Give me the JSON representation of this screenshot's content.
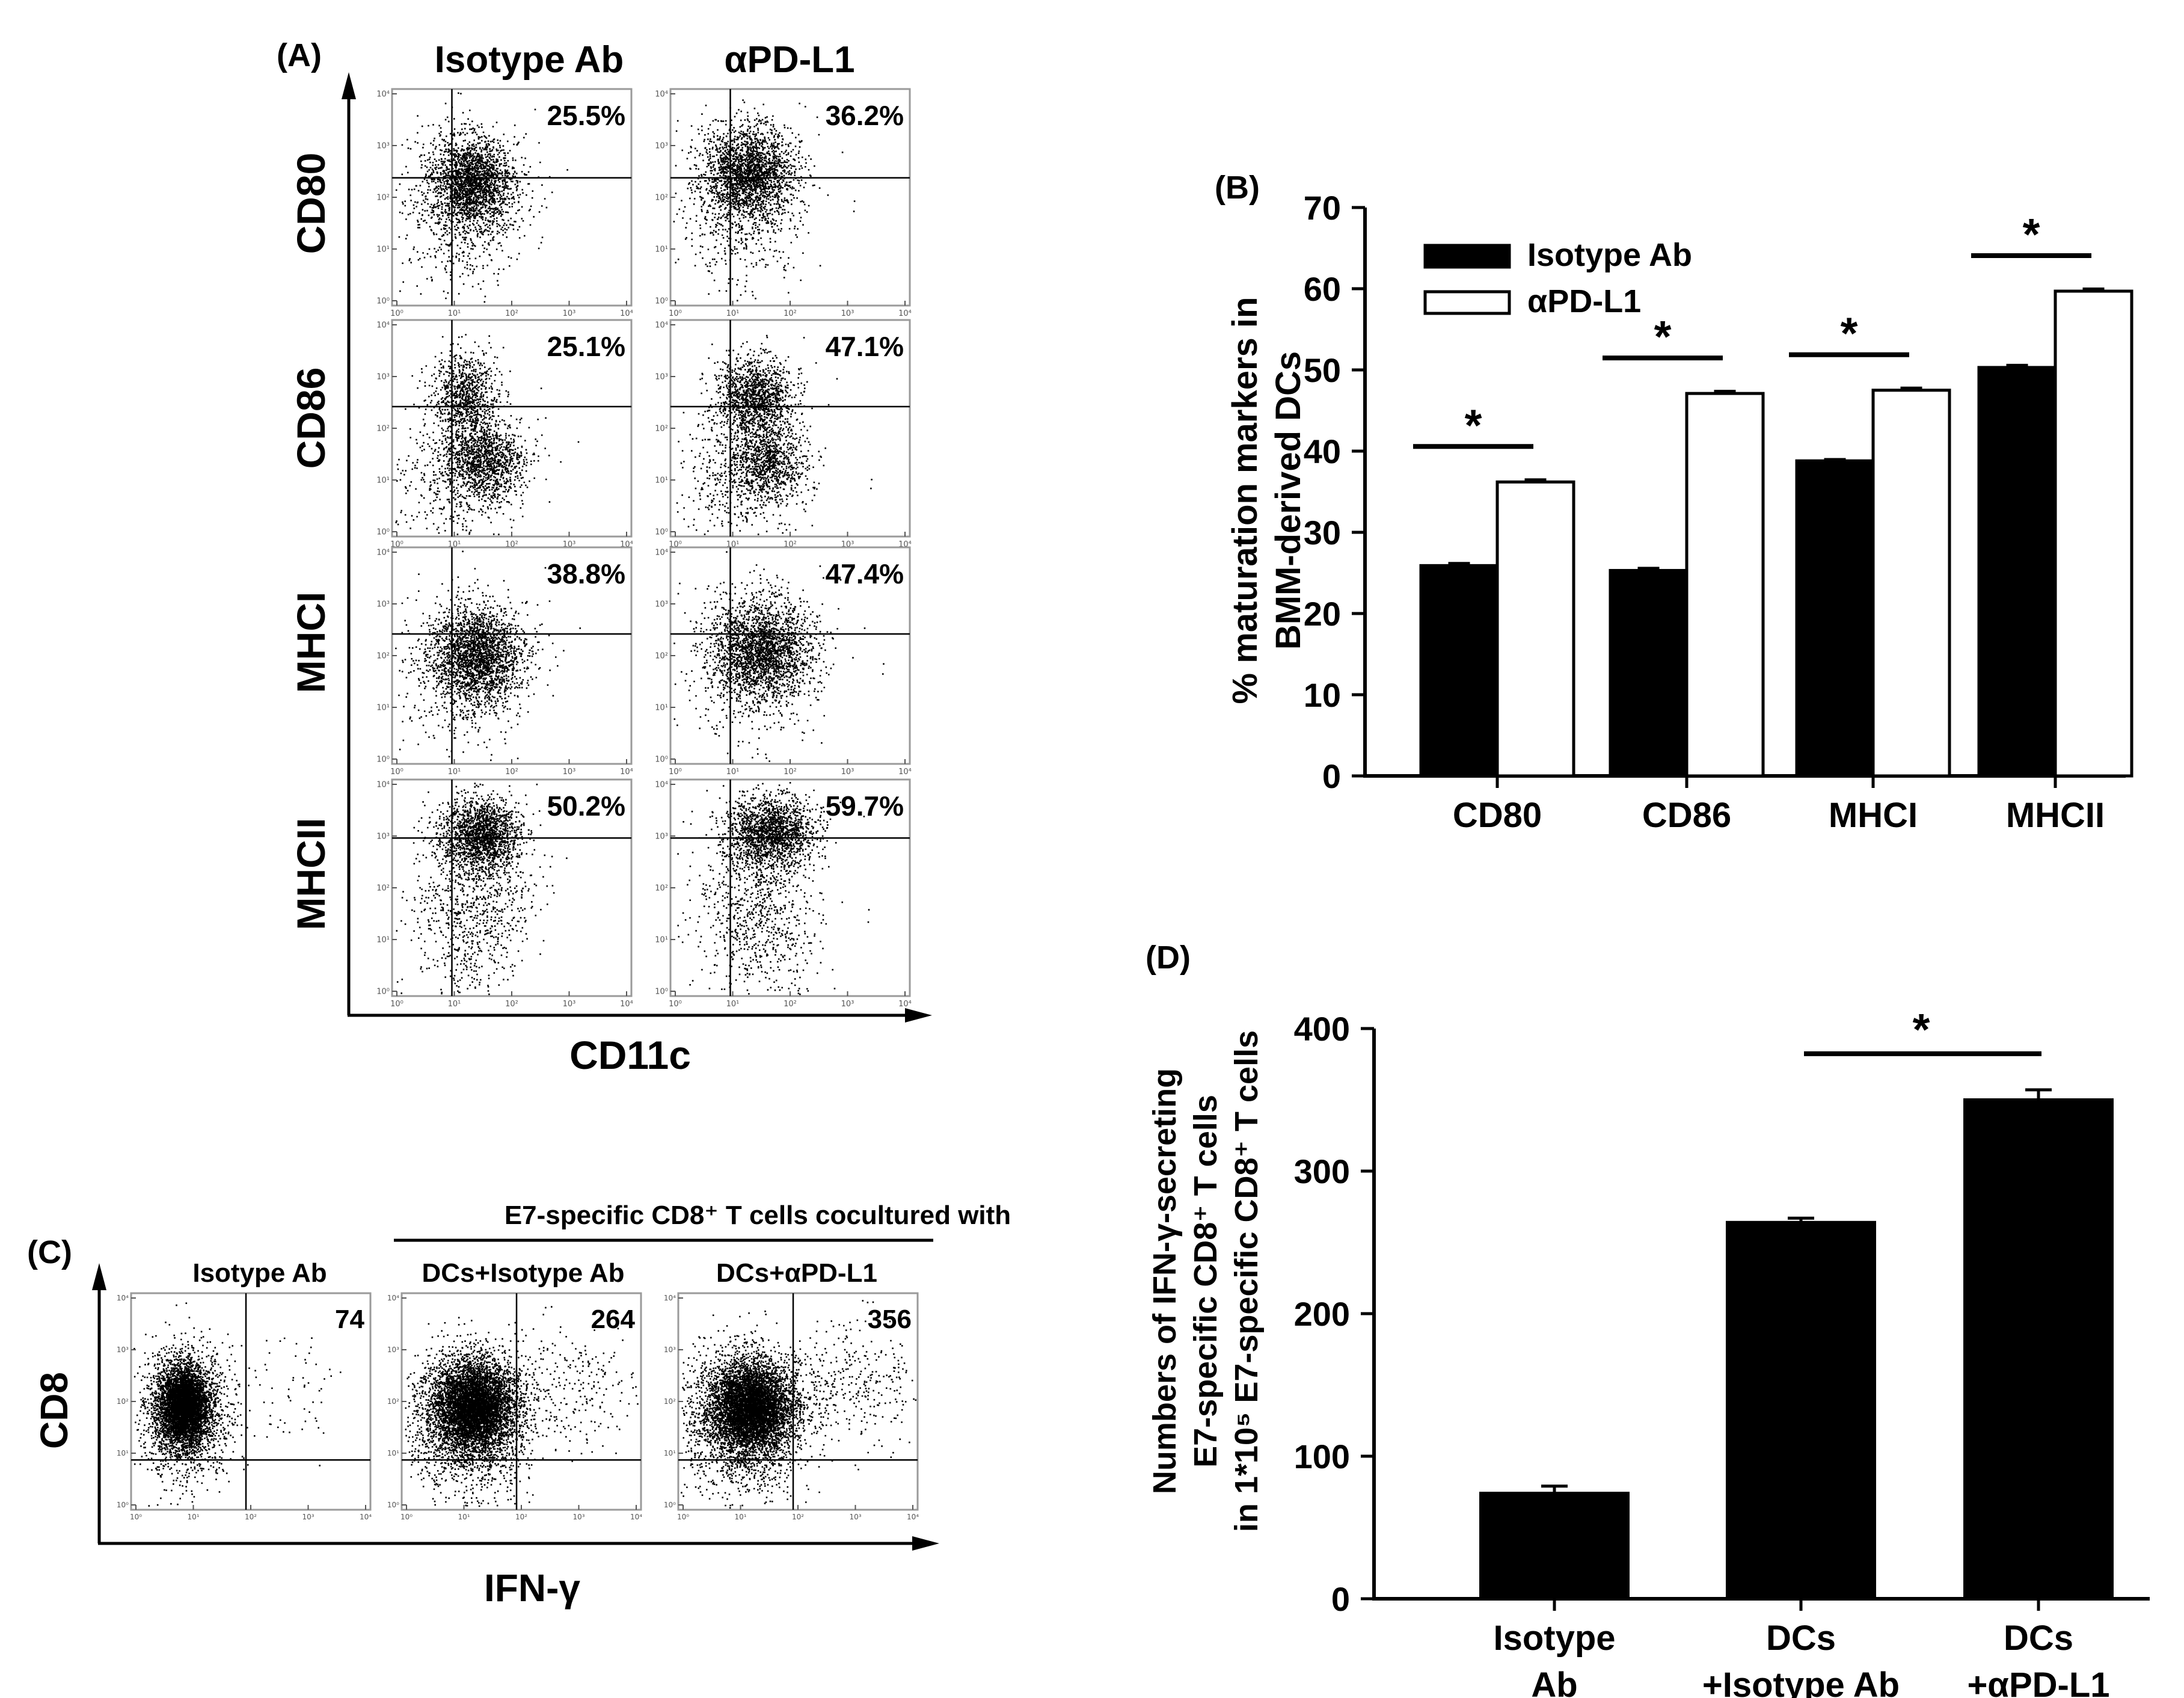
{
  "panel_a": {
    "label": "(A)",
    "column_headers": [
      "Isotype Ab",
      "αPD-L1"
    ],
    "row_labels": [
      "CD80",
      "CD86",
      "MHCI",
      "MHCII"
    ],
    "x_axis_label": "CD11c",
    "percentages": [
      [
        "25.5%",
        "36.2%"
      ],
      [
        "25.1%",
        "47.1%"
      ],
      [
        "38.8%",
        "47.4%"
      ],
      [
        "50.2%",
        "59.7%"
      ]
    ],
    "tick_labels_x": [
      "10⁰",
      "10¹",
      "10²",
      "10³",
      "10⁴"
    ],
    "tick_labels_y": [
      "10⁰",
      "10¹",
      "10²",
      "10³",
      "10⁴"
    ]
  },
  "panel_c": {
    "label": "(C)",
    "bracket_title": "E7-specific CD8⁺ T cells cocultured with",
    "column_headers": [
      "Isotype Ab",
      "DCs+Isotype Ab",
      "DCs+αPD-L1"
    ],
    "counts": [
      "74",
      "264",
      "356"
    ],
    "x_axis_label": "IFN-γ",
    "y_axis_label": "CD8",
    "tick_labels_x": [
      "10⁰",
      "10¹",
      "10²",
      "10³",
      "10⁴"
    ],
    "tick_labels_y": [
      "10⁰",
      "10¹",
      "10²",
      "10³",
      "10⁴"
    ]
  },
  "chart_data": [
    {
      "panel": "(B)",
      "type": "bar",
      "categories": [
        "CD80",
        "CD86",
        "MHCI",
        "MHCII"
      ],
      "series": [
        {
          "name": "Isotype Ab",
          "color": "#000000",
          "values": [
            25.9,
            25.3,
            38.8,
            50.3
          ],
          "errors": [
            0.3,
            0.3,
            0.2,
            0.3
          ]
        },
        {
          "name": "αPD-L1",
          "color": "#ffffff",
          "values": [
            36.2,
            47.1,
            47.5,
            59.7
          ],
          "errors": [
            0.3,
            0.3,
            0.3,
            0.3
          ]
        }
      ],
      "ylabel_lines": [
        "% maturation markers in",
        "BMM-derived DCs"
      ],
      "xlabel": "",
      "ylim": [
        0,
        70
      ],
      "yticks": [
        0,
        10,
        20,
        30,
        40,
        50,
        60,
        70
      ],
      "significance": [
        "*",
        "*",
        "*",
        "*"
      ],
      "legend": "top-left",
      "grid": false
    },
    {
      "panel": "(D)",
      "type": "bar",
      "categories": [
        [
          "Isotype",
          "Ab"
        ],
        [
          "DCs",
          "+Isotype Ab"
        ],
        [
          "DCs",
          "+αPD-L1"
        ]
      ],
      "values": [
        74,
        264,
        350
      ],
      "errors": [
        5,
        3,
        7
      ],
      "color": "#000000",
      "ylabel_lines": [
        "Numbers of IFN-γ-secreting",
        "E7-specific CD8⁺ T cells",
        "in 1*10⁵ E7-specific CD8⁺ T cells"
      ],
      "xlabel": "",
      "ylim": [
        0,
        400
      ],
      "yticks": [
        0,
        100,
        200,
        300,
        400
      ],
      "significance": "*",
      "grid": false
    }
  ]
}
